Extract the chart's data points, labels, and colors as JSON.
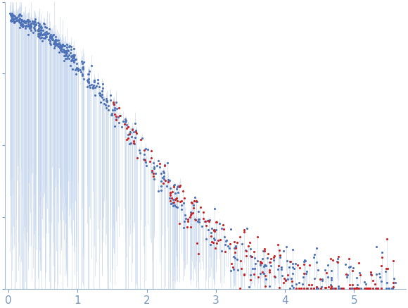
{
  "title": "",
  "xlabel": "",
  "ylabel": "",
  "xlim": [
    -0.05,
    5.75
  ],
  "ylim": [
    0,
    1.05
  ],
  "x_ticks": [
    0,
    1,
    2,
    3,
    4,
    5
  ],
  "background_color": "#ffffff",
  "blue_dot_color": "#4d72b8",
  "red_dot_color": "#cc2222",
  "error_bar_color": "#c8d8ee",
  "spine_color": "#a0b8cc",
  "tick_color": "#7799bb",
  "n_points_low": 250,
  "n_points_mid": 200,
  "n_points_high": 350,
  "seed": 7
}
